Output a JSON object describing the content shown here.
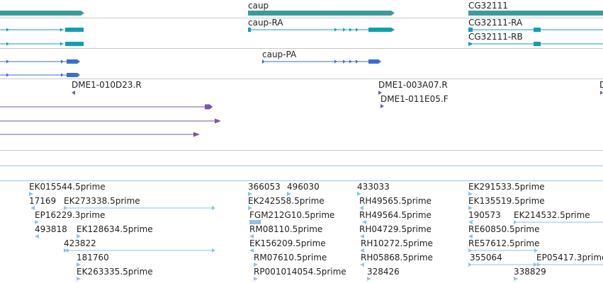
{
  "genes": {
    "caup": "caup",
    "cg32111": "CG32111"
  },
  "transcripts": {
    "caup_ra": "caup-RA",
    "cg32111_ra": "CG32111-RA",
    "cg32111_rb": "CG32111-RB"
  },
  "proteins": {
    "caup_pa": "caup-PA"
  },
  "clones": {
    "c1": "DME1-010D23.R",
    "c2": "DME1-003A07.R",
    "c3": "DME1-011E05.F",
    "c4": "D"
  },
  "ests": {
    "r0": [
      "EK015544.5prime",
      "366053",
      "496030",
      "433033",
      "EK291533.5prime"
    ],
    "r1": [
      "17169",
      "EK273338.5prime",
      "EK242558.5prime",
      "RH49565.5prime",
      "EK135519.5prime"
    ],
    "r2": [
      "EP16229.3prime",
      "FGM212G10.5prime",
      "RH49564.5prime",
      "190573",
      "EK214532.5prime"
    ],
    "r3": [
      "493818",
      "EK128634.5prime",
      "RM08110.5prime",
      "RH04729.5prime",
      "RE60850.5prime"
    ],
    "r4": [
      "423822",
      "EK156209.5prime",
      "RH10272.5prime",
      "RE57612.5prime"
    ],
    "r5": [
      "181760",
      "RM07610.5prime",
      "RH05868.5prime",
      "355064",
      "EP05417.3prime"
    ],
    "r6": [
      "EK263335.5prime",
      "RP001014054.5prime",
      "328426",
      "338829"
    ]
  },
  "colors": {
    "gene": "#3e9a9a",
    "transcript": "#0f9fb5",
    "protein": "#3a6fcc",
    "clone": "#7a55a8",
    "est": "#8fc2e2"
  }
}
